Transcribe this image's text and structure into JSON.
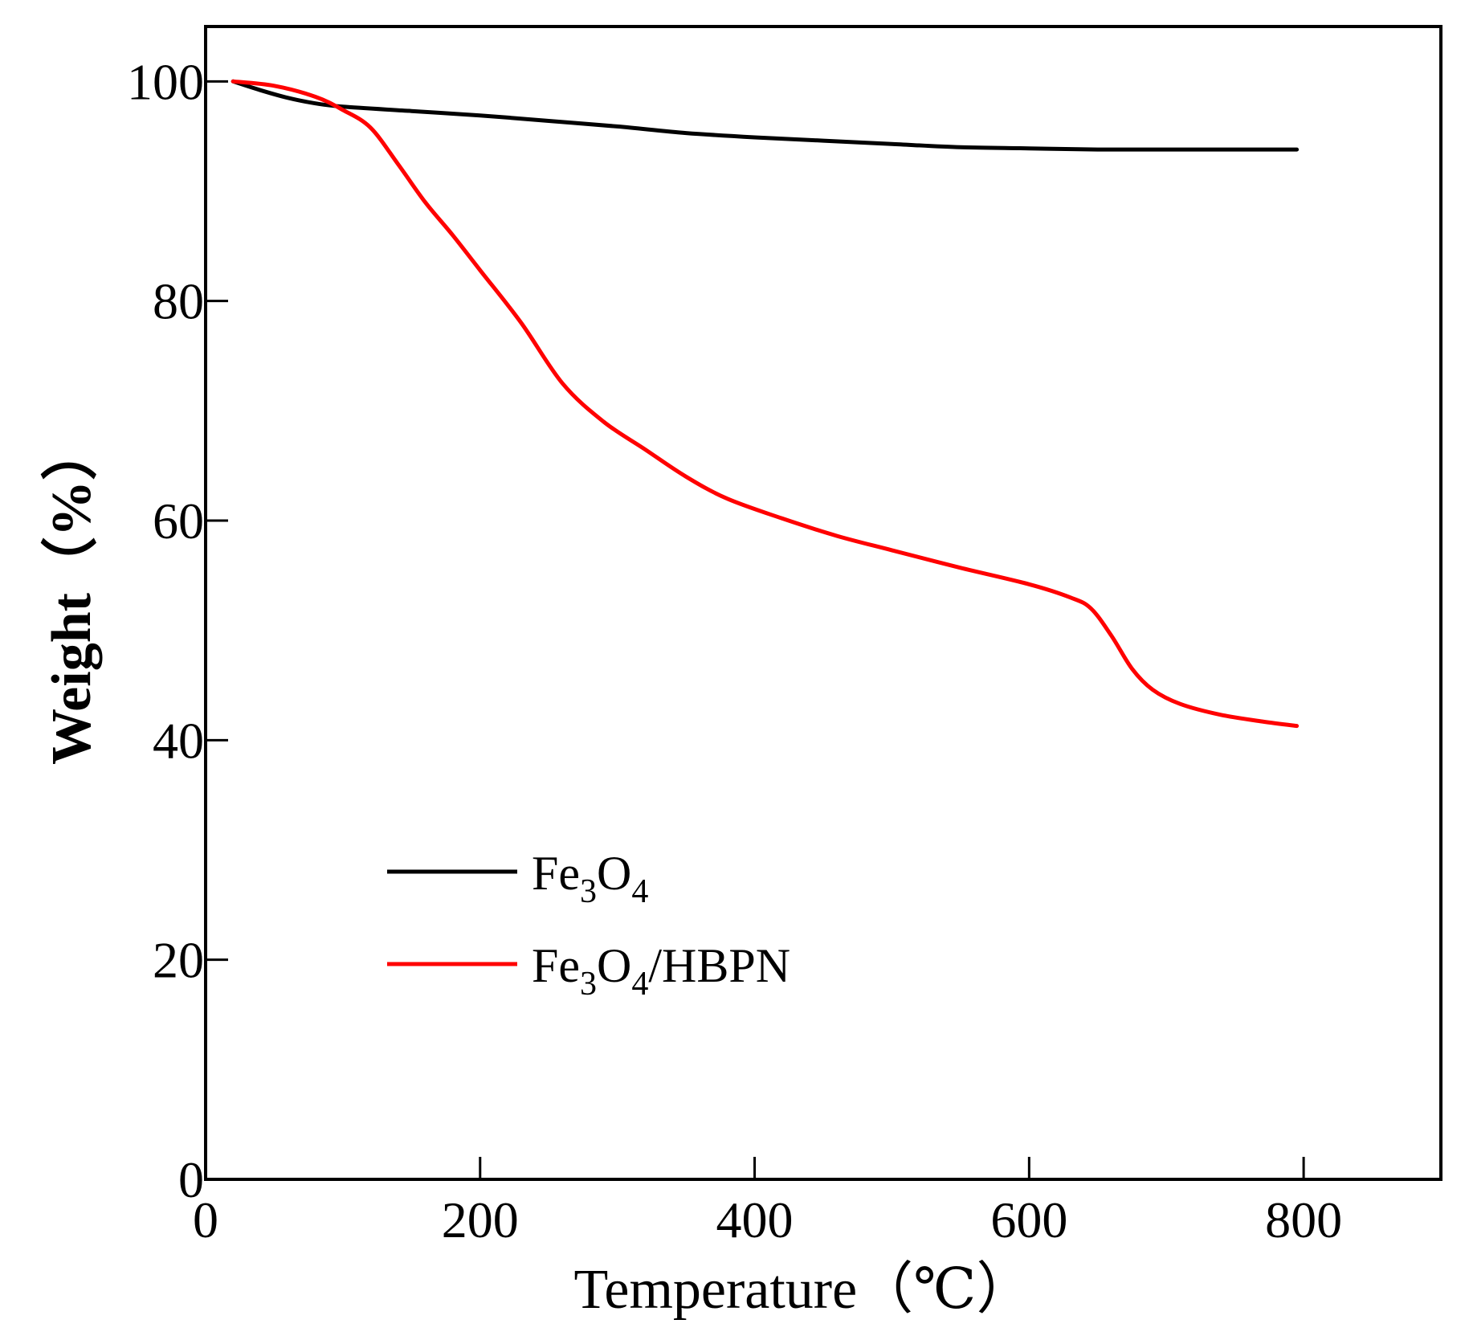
{
  "chart_data": {
    "type": "line",
    "xlabel": "Temperature（℃）",
    "ylabel": "Weight（%）",
    "xlim": [
      0,
      900
    ],
    "ylim": [
      0,
      105
    ],
    "x_ticks": [
      0,
      200,
      400,
      600,
      800
    ],
    "y_ticks": [
      0,
      20,
      40,
      60,
      80,
      100
    ],
    "grid": false,
    "legend_position": "lower-left",
    "series": [
      {
        "name": "Fe3O4",
        "legend_label": {
          "base1": "Fe",
          "sub1": "3",
          "base2": "O",
          "sub2": "4",
          "tail": ""
        },
        "color": "#000000",
        "points": [
          [
            20,
            100
          ],
          [
            40,
            99.2
          ],
          [
            60,
            98.5
          ],
          [
            80,
            98.0
          ],
          [
            100,
            97.7
          ],
          [
            150,
            97.3
          ],
          [
            200,
            96.9
          ],
          [
            250,
            96.4
          ],
          [
            300,
            95.9
          ],
          [
            350,
            95.3
          ],
          [
            400,
            94.9
          ],
          [
            450,
            94.6
          ],
          [
            500,
            94.3
          ],
          [
            550,
            94.0
          ],
          [
            600,
            93.9
          ],
          [
            650,
            93.8
          ],
          [
            700,
            93.8
          ],
          [
            750,
            93.8
          ],
          [
            795,
            93.8
          ]
        ]
      },
      {
        "name": "Fe3O4/HBPN",
        "legend_label": {
          "base1": "Fe",
          "sub1": "3",
          "base2": "O",
          "sub2": "4",
          "tail": "/HBPN"
        },
        "color": "#ff0000",
        "points": [
          [
            20,
            100
          ],
          [
            50,
            99.6
          ],
          [
            80,
            98.6
          ],
          [
            100,
            97.4
          ],
          [
            120,
            95.8
          ],
          [
            140,
            92.5
          ],
          [
            160,
            89.0
          ],
          [
            180,
            86.0
          ],
          [
            200,
            82.8
          ],
          [
            230,
            78.0
          ],
          [
            260,
            72.5
          ],
          [
            290,
            69.0
          ],
          [
            320,
            66.5
          ],
          [
            350,
            64.0
          ],
          [
            380,
            62.0
          ],
          [
            420,
            60.2
          ],
          [
            460,
            58.6
          ],
          [
            500,
            57.3
          ],
          [
            550,
            55.7
          ],
          [
            600,
            54.2
          ],
          [
            630,
            53.0
          ],
          [
            645,
            52.0
          ],
          [
            660,
            49.5
          ],
          [
            675,
            46.5
          ],
          [
            690,
            44.6
          ],
          [
            710,
            43.3
          ],
          [
            740,
            42.3
          ],
          [
            770,
            41.7
          ],
          [
            795,
            41.3
          ]
        ]
      }
    ]
  }
}
